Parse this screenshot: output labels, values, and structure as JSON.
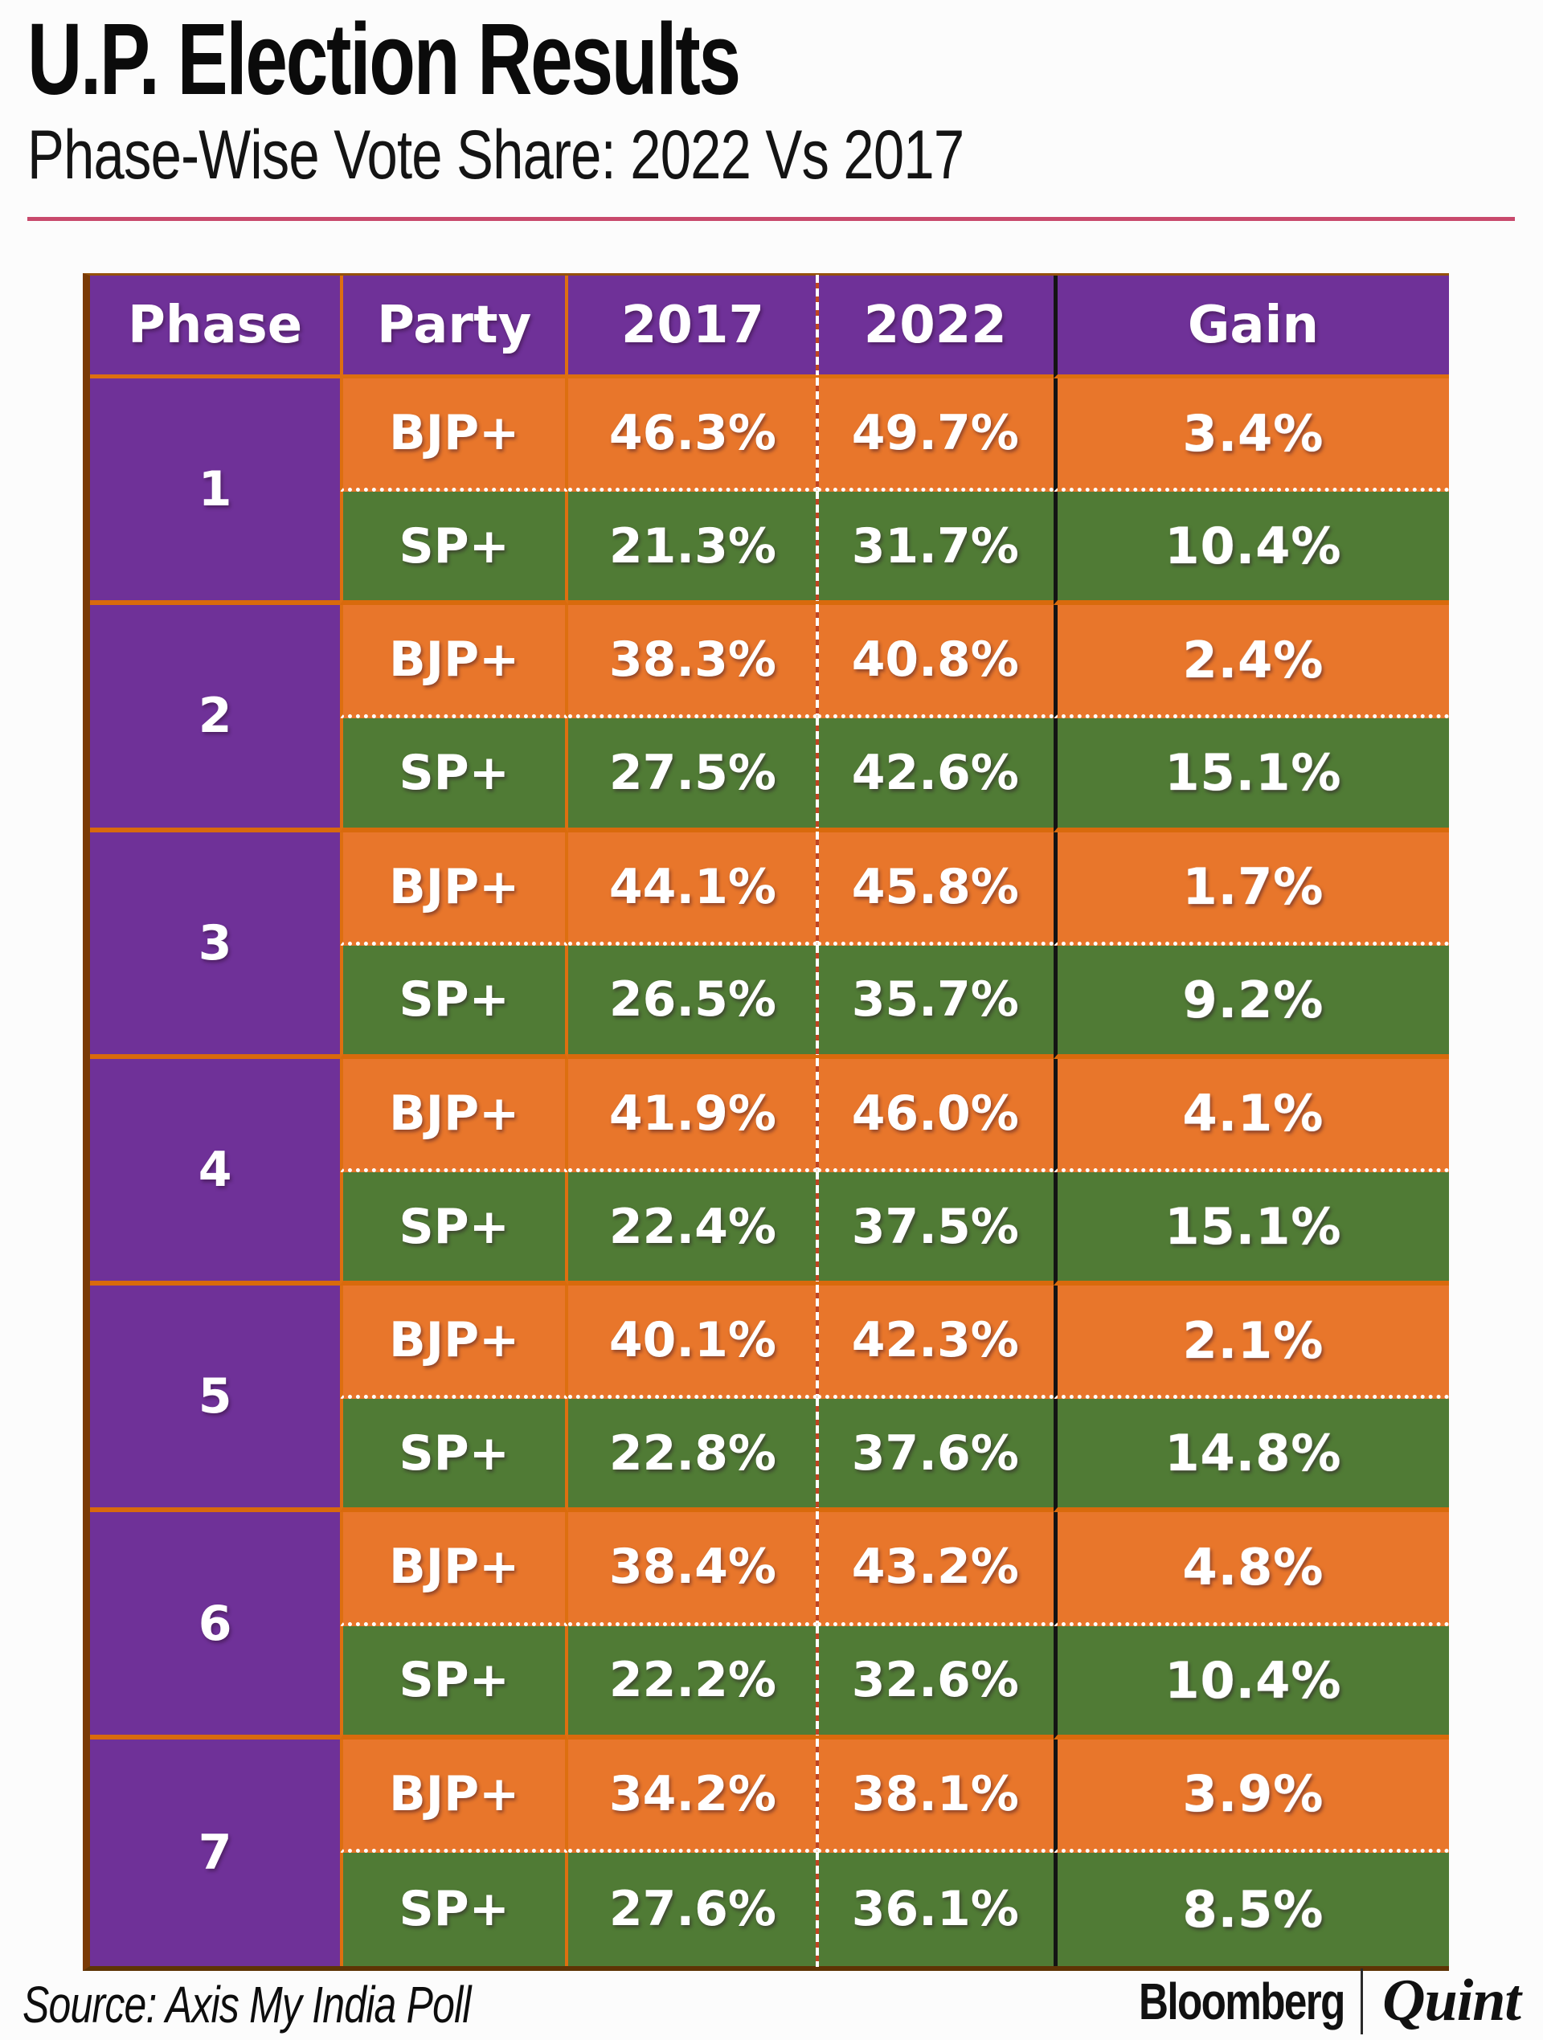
{
  "header": {
    "title": "U.P. Election Results",
    "subtitle": "Phase-Wise Vote Share: 2022 Vs 2017"
  },
  "colors": {
    "purple": "#6F3198",
    "orange": "#E8762B",
    "green": "#507B35",
    "divider_orange": "#DD6F10",
    "outer_border_brown": "#7A3A06",
    "gain_divider_black": "#141414",
    "title_rule_pink": "#C8496C"
  },
  "table": {
    "columns": [
      "Phase",
      "Party",
      "2017",
      "2022",
      "Gain"
    ],
    "phases": [
      {
        "phase": "1",
        "rows": [
          {
            "party": "BJP+",
            "v2017": "46.3%",
            "v2022": "49.7%",
            "gain": "3.4%"
          },
          {
            "party": "SP+",
            "v2017": "21.3%",
            "v2022": "31.7%",
            "gain": "10.4%"
          }
        ]
      },
      {
        "phase": "2",
        "rows": [
          {
            "party": "BJP+",
            "v2017": "38.3%",
            "v2022": "40.8%",
            "gain": "2.4%"
          },
          {
            "party": "SP+",
            "v2017": "27.5%",
            "v2022": "42.6%",
            "gain": "15.1%"
          }
        ]
      },
      {
        "phase": "3",
        "rows": [
          {
            "party": "BJP+",
            "v2017": "44.1%",
            "v2022": "45.8%",
            "gain": "1.7%"
          },
          {
            "party": "SP+",
            "v2017": "26.5%",
            "v2022": "35.7%",
            "gain": "9.2%"
          }
        ]
      },
      {
        "phase": "4",
        "rows": [
          {
            "party": "BJP+",
            "v2017": "41.9%",
            "v2022": "46.0%",
            "gain": "4.1%"
          },
          {
            "party": "SP+",
            "v2017": "22.4%",
            "v2022": "37.5%",
            "gain": "15.1%"
          }
        ]
      },
      {
        "phase": "5",
        "rows": [
          {
            "party": "BJP+",
            "v2017": "40.1%",
            "v2022": "42.3%",
            "gain": "2.1%"
          },
          {
            "party": "SP+",
            "v2017": "22.8%",
            "v2022": "37.6%",
            "gain": "14.8%"
          }
        ]
      },
      {
        "phase": "6",
        "rows": [
          {
            "party": "BJP+",
            "v2017": "38.4%",
            "v2022": "43.2%",
            "gain": "4.8%"
          },
          {
            "party": "SP+",
            "v2017": "22.2%",
            "v2022": "32.6%",
            "gain": "10.4%"
          }
        ]
      },
      {
        "phase": "7",
        "rows": [
          {
            "party": "BJP+",
            "v2017": "34.2%",
            "v2022": "38.1%",
            "gain": "3.9%"
          },
          {
            "party": "SP+",
            "v2017": "27.6%",
            "v2022": "36.1%",
            "gain": "8.5%"
          }
        ]
      }
    ]
  },
  "footer": {
    "source": "Source: Axis My India Poll",
    "brand_left": "Bloomberg",
    "brand_right": "Quint"
  },
  "chart_data": {
    "type": "table",
    "title": "U.P. Election Results",
    "subtitle": "Phase-Wise Vote Share: 2022 Vs 2017",
    "columns": [
      "Phase",
      "Party",
      "2017",
      "2022",
      "Gain"
    ],
    "units": "%",
    "rows": [
      [
        1,
        "BJP+",
        46.3,
        49.7,
        3.4
      ],
      [
        1,
        "SP+",
        21.3,
        31.7,
        10.4
      ],
      [
        2,
        "BJP+",
        38.3,
        40.8,
        2.4
      ],
      [
        2,
        "SP+",
        27.5,
        42.6,
        15.1
      ],
      [
        3,
        "BJP+",
        44.1,
        45.8,
        1.7
      ],
      [
        3,
        "SP+",
        26.5,
        35.7,
        9.2
      ],
      [
        4,
        "BJP+",
        41.9,
        46.0,
        4.1
      ],
      [
        4,
        "SP+",
        22.4,
        37.5,
        15.1
      ],
      [
        5,
        "BJP+",
        40.1,
        42.3,
        2.1
      ],
      [
        5,
        "SP+",
        22.8,
        37.6,
        14.8
      ],
      [
        6,
        "BJP+",
        38.4,
        43.2,
        4.8
      ],
      [
        6,
        "SP+",
        22.2,
        32.6,
        10.4
      ],
      [
        7,
        "BJP+",
        34.2,
        38.1,
        3.9
      ],
      [
        7,
        "SP+",
        27.6,
        36.1,
        8.5
      ]
    ],
    "source": "Axis My India Poll",
    "row_colors": {
      "BJP+": "#E8762B",
      "SP+": "#507B35"
    }
  }
}
